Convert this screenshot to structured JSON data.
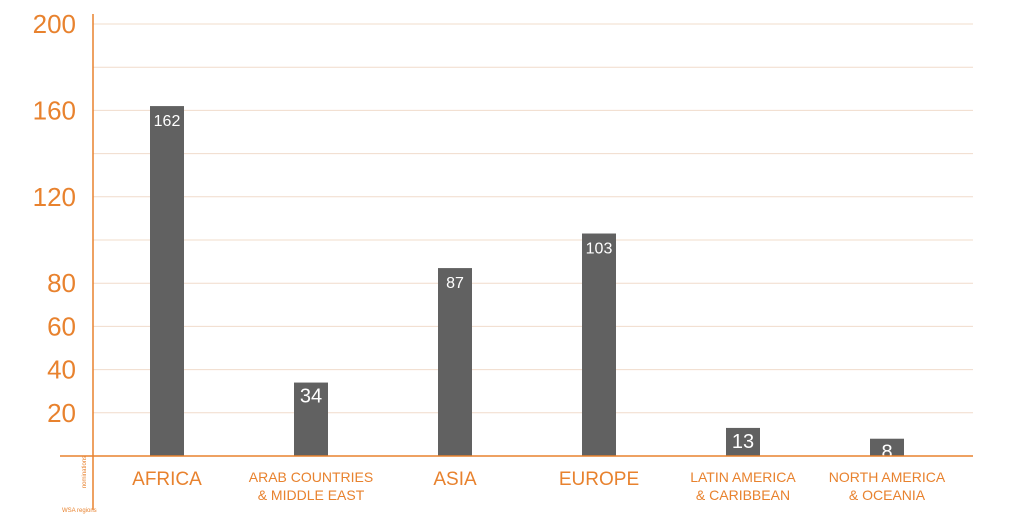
{
  "colors": {
    "accent": "#e8822e",
    "bar": "#616161",
    "bar_label": "#ffffff",
    "grid": "#f1dccb"
  },
  "chart_data": {
    "type": "bar",
    "title": "",
    "xlabel": "WSA regions",
    "ylabel": "nominations",
    "ylim": [
      0,
      200
    ],
    "yticks": [
      20,
      40,
      60,
      80,
      120,
      160,
      200
    ],
    "grid": true,
    "categories": [
      [
        "AFRICA"
      ],
      [
        "ARAB COUNTRIES",
        "& MIDDLE EAST"
      ],
      [
        "ASIA"
      ],
      [
        "EUROPE"
      ],
      [
        "LATIN AMERICA",
        "& CARIBBEAN"
      ],
      [
        "NORTH AMERICA",
        "& OCEANIA"
      ]
    ],
    "values": [
      162,
      34,
      87,
      103,
      13,
      8
    ]
  }
}
